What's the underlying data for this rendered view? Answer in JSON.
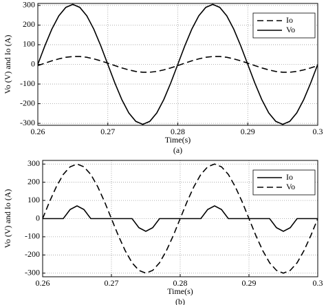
{
  "chart_data": [
    {
      "type": "line",
      "caption": "(a)",
      "xlabel": "Time(s)",
      "ylabel": "Vo (V) and Io (A)",
      "x": [
        0.26,
        0.261,
        0.262,
        0.263,
        0.264,
        0.265,
        0.266,
        0.267,
        0.268,
        0.269,
        0.27,
        0.271,
        0.272,
        0.273,
        0.274,
        0.275,
        0.276,
        0.277,
        0.278,
        0.279,
        0.28,
        0.281,
        0.282,
        0.283,
        0.284,
        0.285,
        0.286,
        0.287,
        0.288,
        0.289,
        0.29,
        0.291,
        0.292,
        0.293,
        0.294,
        0.295,
        0.296,
        0.297,
        0.298,
        0.299,
        0.3
      ],
      "series": [
        {
          "name": "Io",
          "color": "#000000",
          "dash": "dashed",
          "values": [
            -6,
            6,
            18,
            28,
            36,
            40,
            40,
            36,
            28,
            18,
            6,
            -6,
            -18,
            -28,
            -36,
            -40,
            -40,
            -36,
            -28,
            -18,
            -6,
            6,
            18,
            28,
            36,
            40,
            40,
            36,
            28,
            18,
            6,
            -6,
            -18,
            -28,
            -36,
            -40,
            -40,
            -36,
            -28,
            -18,
            -6
          ]
        },
        {
          "name": "Vo",
          "color": "#000000",
          "dash": "solid",
          "values": [
            0,
            94,
            179,
            247,
            290,
            305,
            290,
            247,
            179,
            94,
            0,
            -94,
            -179,
            -247,
            -290,
            -305,
            -290,
            -247,
            -179,
            -94,
            0,
            94,
            179,
            247,
            290,
            305,
            290,
            247,
            179,
            94,
            0,
            -94,
            -179,
            -247,
            -290,
            -305,
            -290,
            -247,
            -179,
            -94,
            0
          ]
        }
      ],
      "xlim": [
        0.26,
        0.3
      ],
      "xticks": [
        0.26,
        0.27,
        0.28,
        0.29,
        0.3
      ],
      "ylim": [
        -310,
        310
      ],
      "yticks": [
        -300,
        -200,
        -100,
        0,
        100,
        200,
        300
      ],
      "grid": true,
      "legend": "upper right"
    },
    {
      "type": "line",
      "caption": "(b)",
      "xlabel": "Time(s)",
      "ylabel": "Vo (V) and Io (A)",
      "x": [
        0.26,
        0.261,
        0.262,
        0.263,
        0.264,
        0.265,
        0.266,
        0.267,
        0.268,
        0.269,
        0.27,
        0.271,
        0.272,
        0.273,
        0.274,
        0.275,
        0.276,
        0.277,
        0.278,
        0.279,
        0.28,
        0.281,
        0.282,
        0.283,
        0.284,
        0.285,
        0.286,
        0.287,
        0.288,
        0.289,
        0.29,
        0.291,
        0.292,
        0.293,
        0.294,
        0.295,
        0.296,
        0.297,
        0.298,
        0.299,
        0.3
      ],
      "series": [
        {
          "name": "Io",
          "color": "#000000",
          "dash": "solid",
          "values": [
            0,
            0,
            0,
            0,
            50,
            70,
            50,
            0,
            0,
            0,
            0,
            0,
            0,
            0,
            -50,
            -70,
            -50,
            0,
            0,
            0,
            0,
            0,
            0,
            0,
            50,
            70,
            50,
            0,
            0,
            0,
            0,
            0,
            0,
            0,
            -50,
            -70,
            -50,
            0,
            0,
            0,
            0
          ]
        },
        {
          "name": "Vo",
          "color": "#000000",
          "dash": "dashed",
          "values": [
            0,
            93,
            176,
            243,
            285,
            300,
            285,
            243,
            176,
            93,
            0,
            -93,
            -176,
            -243,
            -285,
            -300,
            -285,
            -243,
            -176,
            -93,
            0,
            93,
            176,
            243,
            285,
            300,
            285,
            243,
            176,
            93,
            0,
            -93,
            -176,
            -243,
            -285,
            -300,
            -285,
            -243,
            -176,
            -93,
            0
          ]
        }
      ],
      "xlim": [
        0.26,
        0.3
      ],
      "xticks": [
        0.26,
        0.27,
        0.28,
        0.29,
        0.3
      ],
      "ylim": [
        -320,
        320
      ],
      "yticks": [
        -300,
        -200,
        -100,
        0,
        100,
        200,
        300
      ],
      "grid": true,
      "legend": "upper right"
    }
  ]
}
